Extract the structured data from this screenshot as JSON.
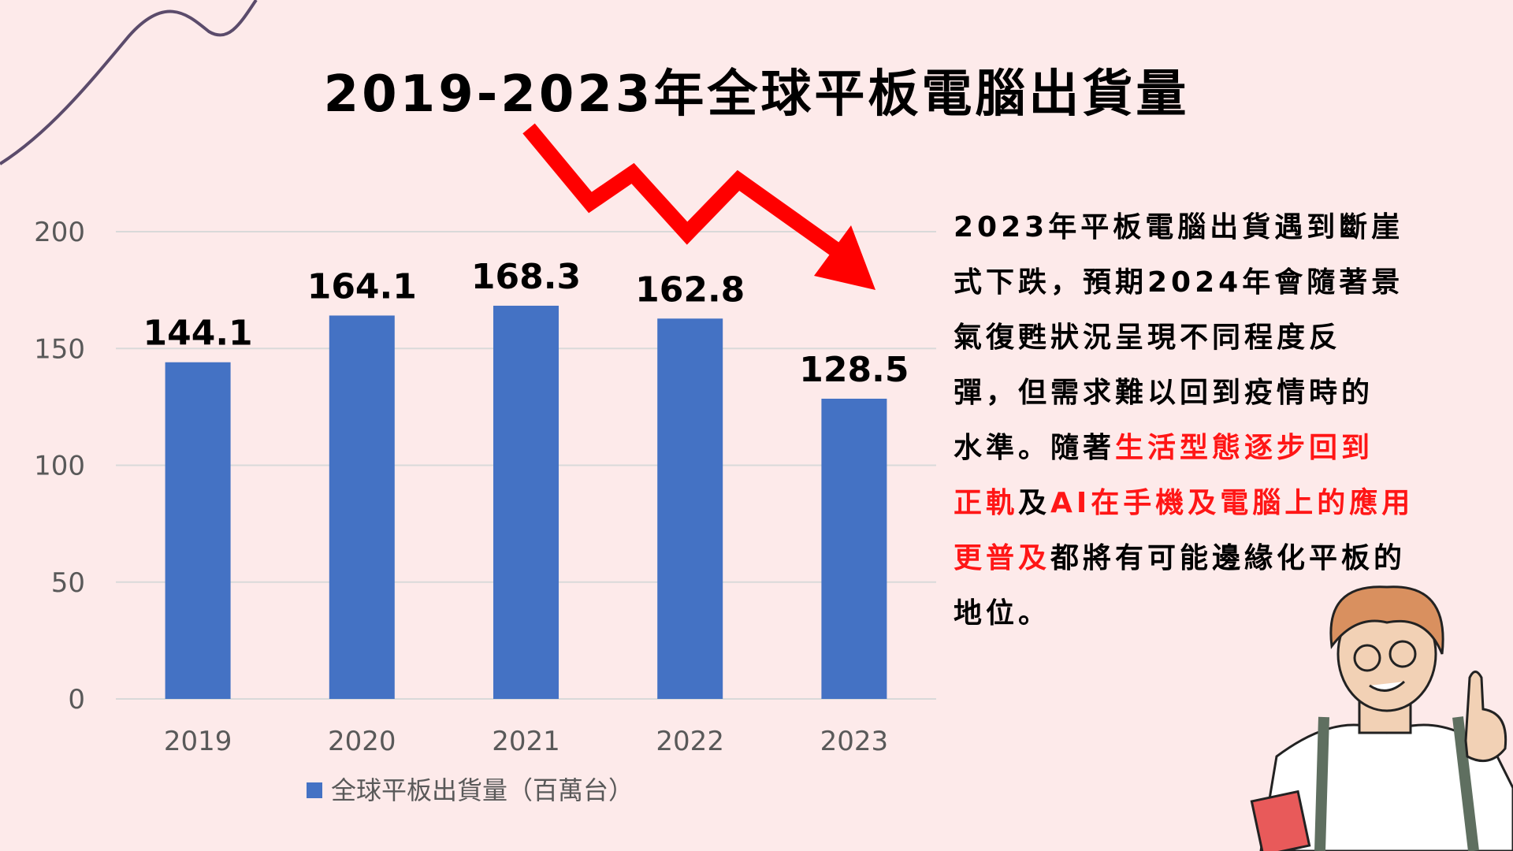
{
  "title": "2019-2023年全球平板電腦出貨量",
  "colors": {
    "background": "#fdeaea",
    "bar": "#4472c4",
    "highlight": "#ff1616",
    "arrow": "#ff0000",
    "grid": "#d9d9d9"
  },
  "chart_data": {
    "type": "bar",
    "categories": [
      "2019",
      "2020",
      "2021",
      "2022",
      "2023"
    ],
    "series": [
      {
        "name": "全球平板出貨量（百萬台）",
        "values": [
          144.1,
          164.1,
          168.3,
          162.8,
          128.5
        ]
      }
    ],
    "data_labels": [
      "144.1",
      "164.1",
      "168.3",
      "162.8",
      "128.5"
    ],
    "yticks": [
      "0",
      "50",
      "100",
      "150",
      "200"
    ],
    "ylim": [
      0,
      200
    ],
    "grid": true,
    "legend": "bottom"
  },
  "paragraph": [
    [
      {
        "t": "2023年平板電腦出貨遇到斷崖",
        "hl": false
      }
    ],
    [
      {
        "t": "式下跌，預期2024年會隨著景",
        "hl": false
      }
    ],
    [
      {
        "t": "氣復甦狀況呈現不同程度反",
        "hl": false
      }
    ],
    [
      {
        "t": "彈，但需求難以回到疫情時的",
        "hl": false
      }
    ],
    [
      {
        "t": "水準。隨著",
        "hl": false
      },
      {
        "t": "生活型態逐步回到",
        "hl": true
      }
    ],
    [
      {
        "t": "正軌",
        "hl": true
      },
      {
        "t": "及",
        "hl": false
      },
      {
        "t": "AI在手機及電腦上的應用",
        "hl": true
      }
    ],
    [
      {
        "t": "更普及",
        "hl": true
      },
      {
        "t": "都將有可能邊緣化平板的",
        "hl": false
      }
    ],
    [
      {
        "t": "地位。",
        "hl": false
      }
    ]
  ],
  "icons": [
    "down-trend-arrow",
    "decorative-curve",
    "teacher-illustration"
  ]
}
